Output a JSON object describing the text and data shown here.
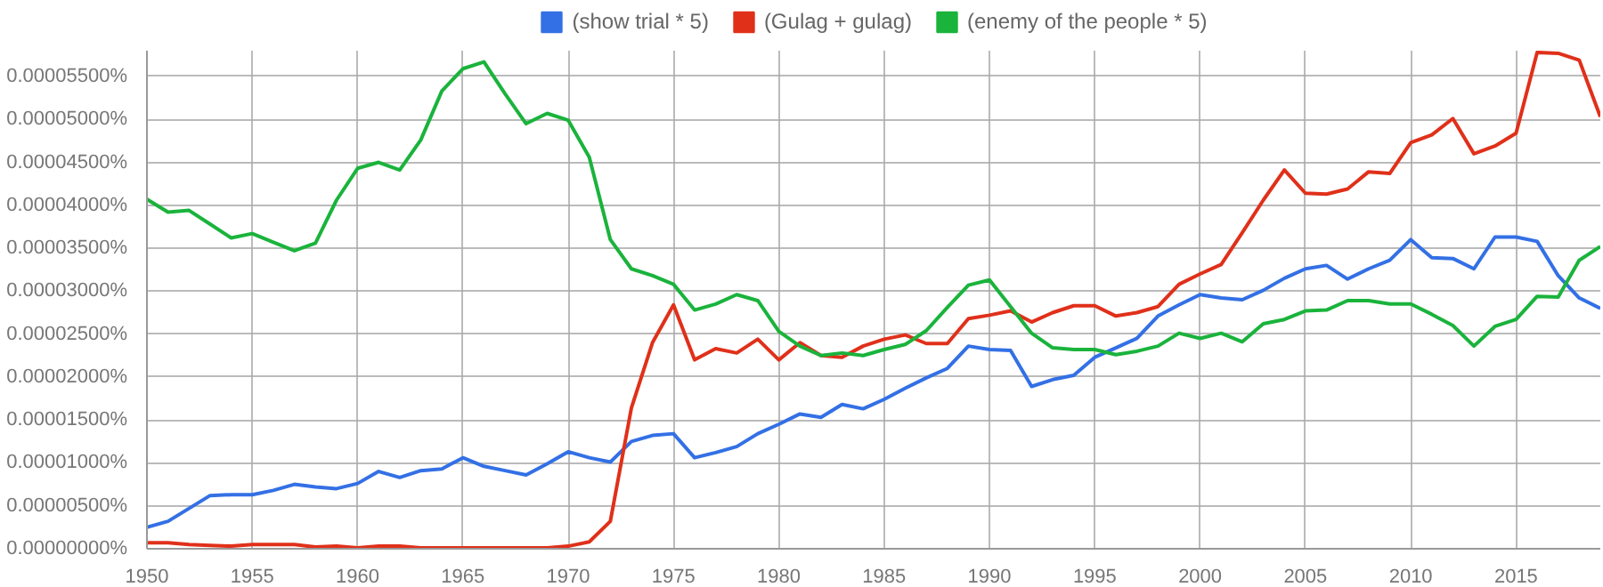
{
  "chart_data": {
    "type": "line",
    "x": [
      1950,
      1951,
      1952,
      1953,
      1954,
      1955,
      1956,
      1957,
      1958,
      1959,
      1960,
      1961,
      1962,
      1963,
      1964,
      1965,
      1966,
      1967,
      1968,
      1969,
      1970,
      1971,
      1972,
      1973,
      1974,
      1975,
      1976,
      1977,
      1978,
      1979,
      1980,
      1981,
      1982,
      1983,
      1984,
      1985,
      1986,
      1987,
      1988,
      1989,
      1990,
      1991,
      1992,
      1993,
      1994,
      1995,
      1996,
      1997,
      1998,
      1999,
      2000,
      2001,
      2002,
      2003,
      2004,
      2005,
      2006,
      2007,
      2008,
      2009,
      2010,
      2011,
      2012,
      2013,
      2014,
      2015,
      2016,
      2017,
      2018,
      2019
    ],
    "series": [
      {
        "name": "(show trial * 5)",
        "color": "#3370e5",
        "values": [
          2.5e-06,
          3.2e-06,
          4.7e-06,
          6.2e-06,
          6.3e-06,
          6.3e-06,
          6.8e-06,
          7.5e-06,
          7.2e-06,
          7e-06,
          7.6e-06,
          9e-06,
          8.3e-06,
          9.1e-06,
          9.3e-06,
          1.06e-05,
          9.6e-06,
          9.1e-06,
          8.6e-06,
          9.9e-06,
          1.13e-05,
          1.06e-05,
          1.01e-05,
          1.25e-05,
          1.32e-05,
          1.34e-05,
          1.06e-05,
          1.12e-05,
          1.19e-05,
          1.34e-05,
          1.45e-05,
          1.57e-05,
          1.53e-05,
          1.68e-05,
          1.63e-05,
          1.74e-05,
          1.87e-05,
          1.99e-05,
          2.1e-05,
          2.36e-05,
          2.32e-05,
          2.31e-05,
          1.89e-05,
          1.97e-05,
          2.02e-05,
          2.23e-05,
          2.34e-05,
          2.45e-05,
          2.71e-05,
          2.84e-05,
          2.96e-05,
          2.92e-05,
          2.9e-05,
          3.01e-05,
          3.15e-05,
          3.26e-05,
          3.3e-05,
          3.14e-05,
          3.26e-05,
          3.36e-05,
          3.6e-05,
          3.39e-05,
          3.38e-05,
          3.26e-05,
          3.63e-05,
          3.63e-05,
          3.58e-05,
          3.18e-05,
          2.92e-05,
          2.8e-05
        ]
      },
      {
        "name": "(Gulag + gulag)",
        "color": "#e0301a",
        "values": [
          7e-07,
          7e-07,
          5e-07,
          4e-07,
          3e-07,
          5e-07,
          5e-07,
          5e-07,
          2e-07,
          3e-07,
          1e-07,
          3e-07,
          3e-07,
          1e-07,
          1e-07,
          1e-07,
          1e-07,
          1e-07,
          1e-07,
          1e-07,
          3e-07,
          8e-07,
          3.2e-06,
          1.64e-05,
          2.4e-05,
          2.84e-05,
          2.2e-05,
          2.33e-05,
          2.28e-05,
          2.44e-05,
          2.2e-05,
          2.4e-05,
          2.25e-05,
          2.23e-05,
          2.36e-05,
          2.44e-05,
          2.49e-05,
          2.39e-05,
          2.39e-05,
          2.68e-05,
          2.72e-05,
          2.77e-05,
          2.64e-05,
          2.75e-05,
          2.83e-05,
          2.83e-05,
          2.71e-05,
          2.75e-05,
          2.82e-05,
          3.08e-05,
          3.2e-05,
          3.31e-05,
          3.68e-05,
          4.06e-05,
          4.41e-05,
          4.14e-05,
          4.13e-05,
          4.19e-05,
          4.39e-05,
          4.37e-05,
          4.73e-05,
          4.82e-05,
          5.01e-05,
          4.6e-05,
          4.69e-05,
          4.84e-05,
          5.78e-05,
          5.77e-05,
          5.69e-05,
          5.03e-05
        ]
      },
      {
        "name": "(enemy of the people * 5)",
        "color": "#1ab33c",
        "values": [
          4.07e-05,
          3.92e-05,
          3.94e-05,
          3.78e-05,
          3.62e-05,
          3.67e-05,
          3.57e-05,
          3.47e-05,
          3.56e-05,
          4.06e-05,
          4.43e-05,
          4.5e-05,
          4.41e-05,
          4.76e-05,
          5.33e-05,
          5.59e-05,
          5.67e-05,
          5.3e-05,
          4.95e-05,
          5.07e-05,
          4.99e-05,
          4.56e-05,
          3.6e-05,
          3.26e-05,
          3.18e-05,
          3.08e-05,
          2.78e-05,
          2.85e-05,
          2.96e-05,
          2.89e-05,
          2.53e-05,
          2.36e-05,
          2.25e-05,
          2.28e-05,
          2.25e-05,
          2.32e-05,
          2.38e-05,
          2.54e-05,
          2.81e-05,
          3.07e-05,
          3.13e-05,
          2.82e-05,
          2.51e-05,
          2.34e-05,
          2.32e-05,
          2.32e-05,
          2.26e-05,
          2.3e-05,
          2.36e-05,
          2.51e-05,
          2.45e-05,
          2.51e-05,
          2.41e-05,
          2.62e-05,
          2.67e-05,
          2.77e-05,
          2.78e-05,
          2.89e-05,
          2.89e-05,
          2.85e-05,
          2.85e-05,
          2.73e-05,
          2.6e-05,
          2.36e-05,
          2.59e-05,
          2.67e-05,
          2.94e-05,
          2.93e-05,
          3.36e-05,
          3.52e-05
        ]
      }
    ],
    "xlim": [
      1950,
      2019
    ],
    "ylim": [
      0,
      5.8e-05
    ],
    "xticks": [
      1950,
      1955,
      1960,
      1965,
      1970,
      1975,
      1980,
      1985,
      1990,
      1995,
      2000,
      2005,
      2010,
      2015
    ],
    "yticks": [
      {
        "value": 0,
        "label": "0.00000000%"
      },
      {
        "value": 5e-06,
        "label": "0.00000500%"
      },
      {
        "value": 1e-05,
        "label": "0.00001000%"
      },
      {
        "value": 1.5e-05,
        "label": "0.00001500%"
      },
      {
        "value": 2e-05,
        "label": "0.00002000%"
      },
      {
        "value": 2.5e-05,
        "label": "0.00002500%"
      },
      {
        "value": 3e-05,
        "label": "0.00003000%"
      },
      {
        "value": 3.5e-05,
        "label": "0.00003500%"
      },
      {
        "value": 4e-05,
        "label": "0.00004000%"
      },
      {
        "value": 4.5e-05,
        "label": "0.00004500%"
      },
      {
        "value": 5e-05,
        "label": "0.00005000%"
      },
      {
        "value": 5.5e-05,
        "label": "0.00005500%"
      }
    ],
    "grid": true,
    "legend": "top",
    "marker": "none",
    "line_style": "solid"
  }
}
